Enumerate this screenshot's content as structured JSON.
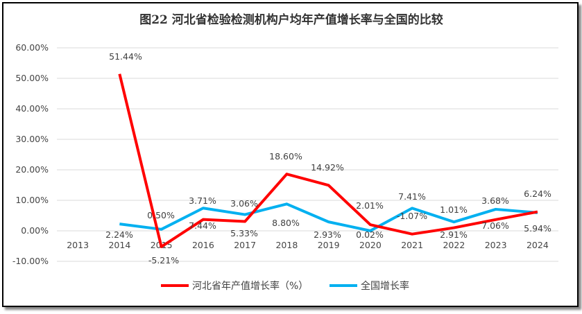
{
  "chart_data": {
    "type": "line",
    "title": "图22  河北省检验检测机构户均年产值增长率与全国的比较",
    "categories": [
      "2013",
      "2014",
      "2015",
      "2016",
      "2017",
      "2018",
      "2019",
      "2020",
      "2021",
      "2022",
      "2023",
      "2024"
    ],
    "ylim": [
      -10,
      60
    ],
    "yticks": [
      "-10.00%",
      "0.00%",
      "10.00%",
      "20.00%",
      "30.00%",
      "40.00%",
      "50.00%",
      "60.00%"
    ],
    "grid": true,
    "legend": "bottom",
    "series": [
      {
        "name": "河北省年产值增长率（%）",
        "color": "#FF0000",
        "values": [
          null,
          51.44,
          -5.21,
          3.71,
          3.06,
          18.6,
          14.92,
          2.01,
          -1.07,
          1.01,
          3.68,
          6.24
        ],
        "labels": [
          "",
          "51.44%",
          "-5.21%",
          "3.71%",
          "3.06%",
          "18.60%",
          "14.92%",
          "2.01%",
          "-1.07%",
          "1.01%",
          "3.68%",
          "6.24%"
        ]
      },
      {
        "name": "全国增长率",
        "color": "#00B0F0",
        "values": [
          null,
          2.24,
          0.5,
          7.44,
          5.33,
          8.8,
          2.93,
          0.02,
          7.41,
          2.91,
          7.06,
          5.94
        ],
        "labels": [
          "",
          "2.24%",
          "0.50%",
          "7.44%",
          "5.33%",
          "8.80%",
          "2.93%",
          "0.02%",
          "7.41%",
          "2.91%",
          "7.06%",
          "5.94%"
        ]
      }
    ]
  }
}
